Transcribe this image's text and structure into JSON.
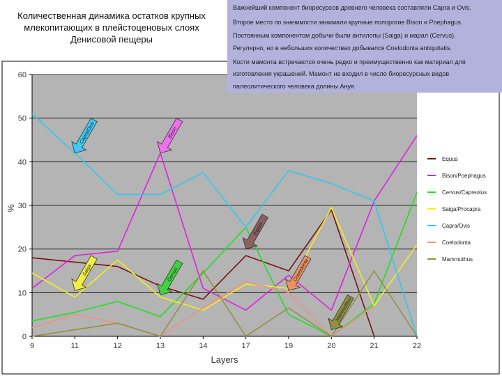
{
  "title_lines": [
    "Количественная динамика остатков крупных",
    "млекопитающих в плейстоценовых слоях",
    "Денисовой пещеры"
  ],
  "info_lines": [
    "Важнейший компонент биоресурсов древнего человека составляли Capra и Ovis.",
    "Второе место по значимости занимали крупные полорогие Bison и Poephagus.",
    "Постоянным компонентом добычи были антилопы (Saiga) и марал (Cervus).",
    "Регулярно, но в небольших количествах добывался Coelodonta antiquitatis.",
    "Кости мамонта встречаются очень редко и преимущественно как материал для",
    "изготовления украшений. Мамонт не входил в число биоресурсных видов",
    "палеолитического человека долины Ануя."
  ],
  "colors": {
    "plot_bg": "#b4b4b4",
    "info_bg": "#b2b2dc",
    "gridline": "#000000",
    "arrow_border": "#333333"
  },
  "chart_data": {
    "type": "line",
    "xlabel": "Layers",
    "ylabel": "%",
    "categories": [
      "9",
      "11",
      "12",
      "13",
      "14",
      "17",
      "19",
      "20",
      "21",
      "22"
    ],
    "ylim": [
      0,
      60
    ],
    "yticks": [
      0,
      10,
      20,
      30,
      40,
      50,
      60
    ],
    "grid": "horizontal",
    "legend_position": "right",
    "series": [
      {
        "name": "Equus",
        "color": "#7a1010",
        "values": [
          18,
          17,
          16,
          11.5,
          8.5,
          18.5,
          15,
          29,
          0,
          null
        ]
      },
      {
        "name": "Bison/Poephagus",
        "color": "#e020e0",
        "values": [
          11,
          18.5,
          19.5,
          42,
          11,
          6,
          14,
          6,
          31,
          46
        ]
      },
      {
        "name": "Cervus/Capreolus",
        "color": "#20e020",
        "values": [
          3.5,
          5.5,
          8,
          4.5,
          14.5,
          25,
          5,
          0,
          7.5,
          33
        ]
      },
      {
        "name": "Saiga/Procapra",
        "color": "#f0f020",
        "values": [
          14.5,
          9,
          17.5,
          9,
          6,
          12,
          11,
          29.5,
          7,
          21
        ]
      },
      {
        "name": "Capra/Ovis",
        "color": "#30c8f0",
        "values": [
          51,
          42,
          32.5,
          32.5,
          37.5,
          25,
          38,
          35,
          31,
          0
        ]
      },
      {
        "name": "Coelodonta",
        "color": "#f09080",
        "values": [
          2,
          5,
          3,
          0,
          6.5,
          12.5,
          10,
          0,
          7,
          null
        ]
      },
      {
        "name": "Mammuthus",
        "color": "#909040",
        "values": [
          0,
          1.5,
          3,
          0,
          15,
          0,
          6.5,
          0,
          15,
          0
        ]
      }
    ],
    "annotations": [
      {
        "label": "Capra/Ovis",
        "color": "#40c8f0",
        "x": "11",
        "y": 42
      },
      {
        "label": "Bison",
        "color": "#f070f0",
        "x": "13",
        "y": 42
      },
      {
        "label": "Saiga",
        "color": "#f0f040",
        "x": "11",
        "y": 10.5
      },
      {
        "label": "Cervus",
        "color": "#40d040",
        "x": "13",
        "y": 9.5
      },
      {
        "label": "Equus",
        "color": "#8a6060",
        "x": "17",
        "y": 20
      },
      {
        "label": "Coelodonta",
        "color": "#f09060",
        "x": "19",
        "y": 10.5
      },
      {
        "label": "Mammuthus",
        "color": "#909040",
        "x": "20",
        "y": 1.5
      }
    ]
  }
}
